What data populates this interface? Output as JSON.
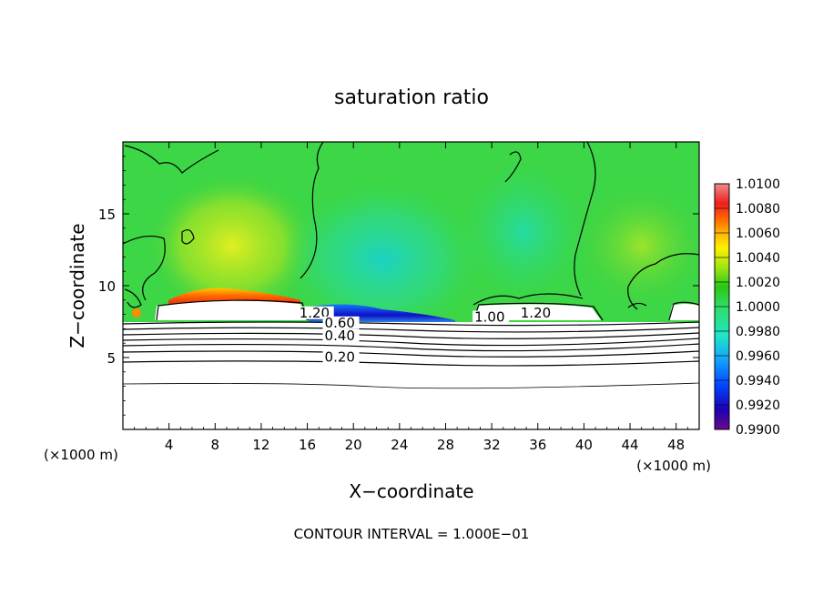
{
  "chart_data": {
    "type": "heatmap",
    "title": "saturation ratio",
    "xlabel": "X−coordinate",
    "ylabel": "Z−coordinate",
    "x_unit_left": "(×1000 m)",
    "x_unit_right": "(×1000 m)",
    "footer": "CONTOUR INTERVAL = 1.000E−01",
    "xlim": [
      0,
      50
    ],
    "ylim": [
      0,
      20
    ],
    "x_ticks": [
      4,
      8,
      12,
      16,
      20,
      24,
      28,
      32,
      36,
      40,
      44,
      48
    ],
    "x_tick_labels": [
      "4",
      "8",
      "12",
      "16",
      "20",
      "24",
      "28",
      "32",
      "36",
      "40",
      "44",
      "48"
    ],
    "y_ticks": [
      5,
      10,
      15
    ],
    "y_tick_labels": [
      "5",
      "10",
      "15"
    ],
    "colorbar": {
      "labels": [
        "1.0100",
        "1.0080",
        "1.0060",
        "1.0040",
        "1.0020",
        "1.0000",
        "0.9980",
        "0.9960",
        "0.9940",
        "0.9920",
        "0.9900"
      ],
      "min": 0.99,
      "max": 1.01,
      "colors": [
        "#6a0a8a",
        "#1e00b4",
        "#0046ff",
        "#14a0ff",
        "#1ee6c8",
        "#32dc64",
        "#28c814",
        "#a0e614",
        "#fff000",
        "#ffb400",
        "#ff6400",
        "#f01e1e",
        "#f08c8c"
      ]
    },
    "contour_labels": [
      {
        "text": "1.20",
        "x": 15.3,
        "z": 7.8
      },
      {
        "text": "0.60",
        "x": 17.5,
        "z": 7.1
      },
      {
        "text": "0.40",
        "x": 17.5,
        "z": 6.2
      },
      {
        "text": "0.20",
        "x": 17.5,
        "z": 4.7
      },
      {
        "text": "1.00",
        "x": 30.5,
        "z": 7.5
      },
      {
        "text": "1.20",
        "x": 34.5,
        "z": 7.8
      }
    ]
  }
}
